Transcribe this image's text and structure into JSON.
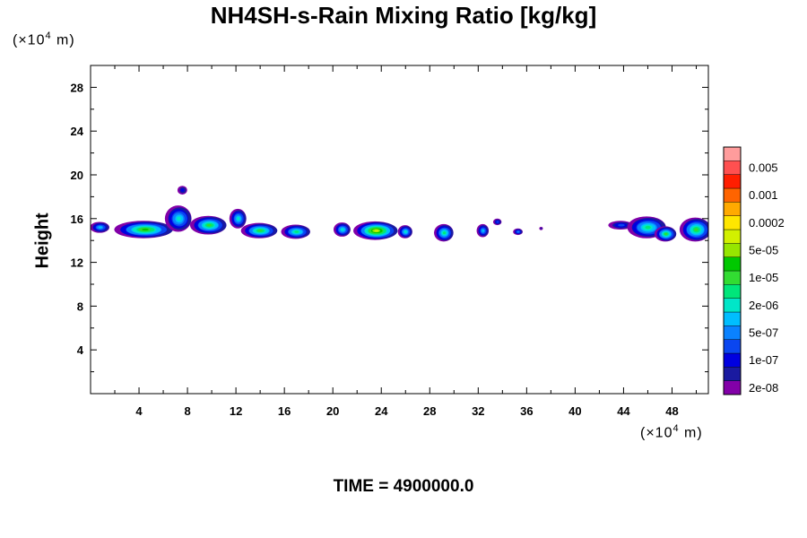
{
  "chart_data": {
    "type": "heatmap",
    "title": "NH4SH-s-Rain Mixing Ratio [kg/kg]",
    "ylabel": "Height",
    "y_unit": {
      "prefix": "(×10",
      "exp": "4",
      "suffix": " m)"
    },
    "x_unit": {
      "prefix": "(×10",
      "exp": "4",
      "suffix": " m)"
    },
    "xlim": [
      0,
      51
    ],
    "ylim": [
      0,
      30
    ],
    "x_ticks": [
      4,
      8,
      12,
      16,
      20,
      24,
      28,
      32,
      36,
      40,
      44,
      48
    ],
    "y_ticks": [
      4,
      8,
      12,
      16,
      20,
      24,
      28
    ],
    "colorbar": {
      "colors": [
        "#8200a8",
        "#1a1aa0",
        "#0000e0",
        "#0a46f0",
        "#0a82ff",
        "#00beff",
        "#00e6c8",
        "#00e67a",
        "#32dc32",
        "#00c800",
        "#96e600",
        "#d2f000",
        "#ffe600",
        "#ffaa00",
        "#ff6400",
        "#ff1e00",
        "#ff5050",
        "#ff9c9c"
      ],
      "labels": [
        "2e-08",
        "1e-07",
        "5e-07",
        "2e-06",
        "1e-05",
        "5e-05",
        "0.0002",
        "0.001",
        "0.005"
      ]
    },
    "clouds": [
      {
        "x": 4.5,
        "y": 15.0,
        "w": 4.8,
        "h": 1.6,
        "peak": 9
      },
      {
        "x": 0.8,
        "y": 15.2,
        "w": 1.6,
        "h": 1.0,
        "peak": 5
      },
      {
        "x": 7.3,
        "y": 16.0,
        "w": 2.2,
        "h": 2.4,
        "peak": 6
      },
      {
        "x": 7.6,
        "y": 18.6,
        "w": 0.8,
        "h": 0.8,
        "peak": 2
      },
      {
        "x": 9.8,
        "y": 15.4,
        "w": 3.0,
        "h": 1.7,
        "peak": 8
      },
      {
        "x": 12.2,
        "y": 16.0,
        "w": 1.4,
        "h": 1.8,
        "peak": 6
      },
      {
        "x": 14.0,
        "y": 14.9,
        "w": 3.0,
        "h": 1.4,
        "peak": 8
      },
      {
        "x": 17.0,
        "y": 14.8,
        "w": 2.4,
        "h": 1.3,
        "peak": 7
      },
      {
        "x": 20.8,
        "y": 15.0,
        "w": 1.4,
        "h": 1.3,
        "peak": 6
      },
      {
        "x": 23.6,
        "y": 14.9,
        "w": 3.6,
        "h": 1.7,
        "peak": 11
      },
      {
        "x": 26.0,
        "y": 14.8,
        "w": 1.2,
        "h": 1.2,
        "peak": 6
      },
      {
        "x": 29.2,
        "y": 14.7,
        "w": 1.6,
        "h": 1.6,
        "peak": 7
      },
      {
        "x": 32.4,
        "y": 14.9,
        "w": 1.0,
        "h": 1.2,
        "peak": 5
      },
      {
        "x": 33.6,
        "y": 15.7,
        "w": 0.7,
        "h": 0.6,
        "peak": 3
      },
      {
        "x": 35.3,
        "y": 14.8,
        "w": 0.8,
        "h": 0.6,
        "peak": 4
      },
      {
        "x": 37.2,
        "y": 15.1,
        "w": 0.3,
        "h": 0.3,
        "peak": 1
      },
      {
        "x": 43.8,
        "y": 15.4,
        "w": 2.0,
        "h": 0.8,
        "peak": 3
      },
      {
        "x": 46.0,
        "y": 15.2,
        "w": 3.2,
        "h": 2.0,
        "peak": 7
      },
      {
        "x": 47.5,
        "y": 14.6,
        "w": 1.8,
        "h": 1.4,
        "peak": 8
      },
      {
        "x": 50.0,
        "y": 15.0,
        "w": 2.6,
        "h": 2.2,
        "peak": 8
      }
    ]
  },
  "footer": {
    "time": "TIME = 4900000.0"
  }
}
